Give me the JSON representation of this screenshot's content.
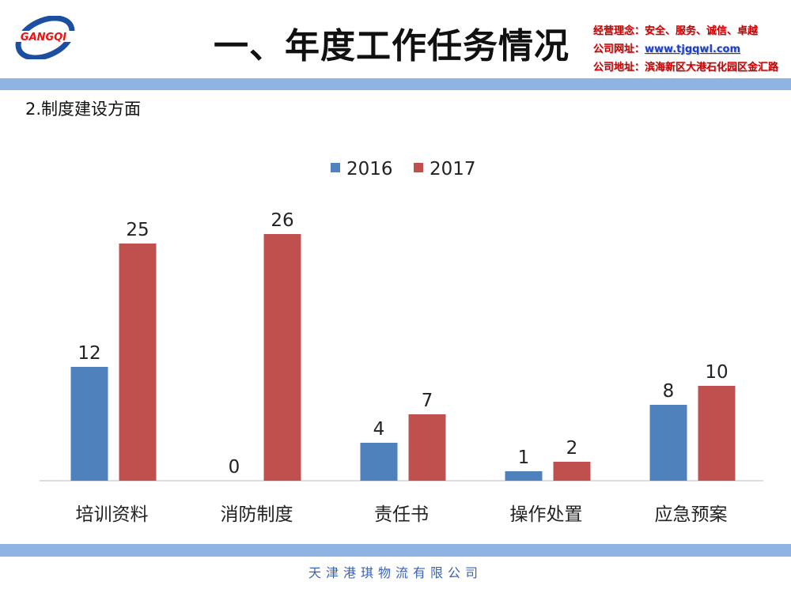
{
  "header": {
    "logo_text": "GANGQI",
    "title": "一、年度工作任务情况",
    "info": [
      {
        "label": "经营理念：",
        "value": "安全、服务、诚信、卓越"
      },
      {
        "label": "公司网址：",
        "value": "www.tjgqwl.com"
      },
      {
        "label": "公司地址：",
        "value": "滨海新区大港石化园区金汇路"
      }
    ]
  },
  "subtitle": "2.制度建设方面",
  "footer": "天津港琪物流有限公司",
  "chart_data": {
    "type": "bar",
    "title": "",
    "xlabel": "",
    "ylabel": "",
    "ylim": [
      0,
      26
    ],
    "grid": false,
    "legend": "top",
    "categories": [
      "培训资料",
      "消防制度",
      "责任书",
      "操作处置",
      "应急预案"
    ],
    "series": [
      {
        "name": "2016",
        "color": "#4f81bd",
        "values": [
          12,
          0,
          4,
          1,
          8
        ]
      },
      {
        "name": "2017",
        "color": "#c0504d",
        "values": [
          25,
          26,
          7,
          2,
          10
        ]
      }
    ]
  }
}
